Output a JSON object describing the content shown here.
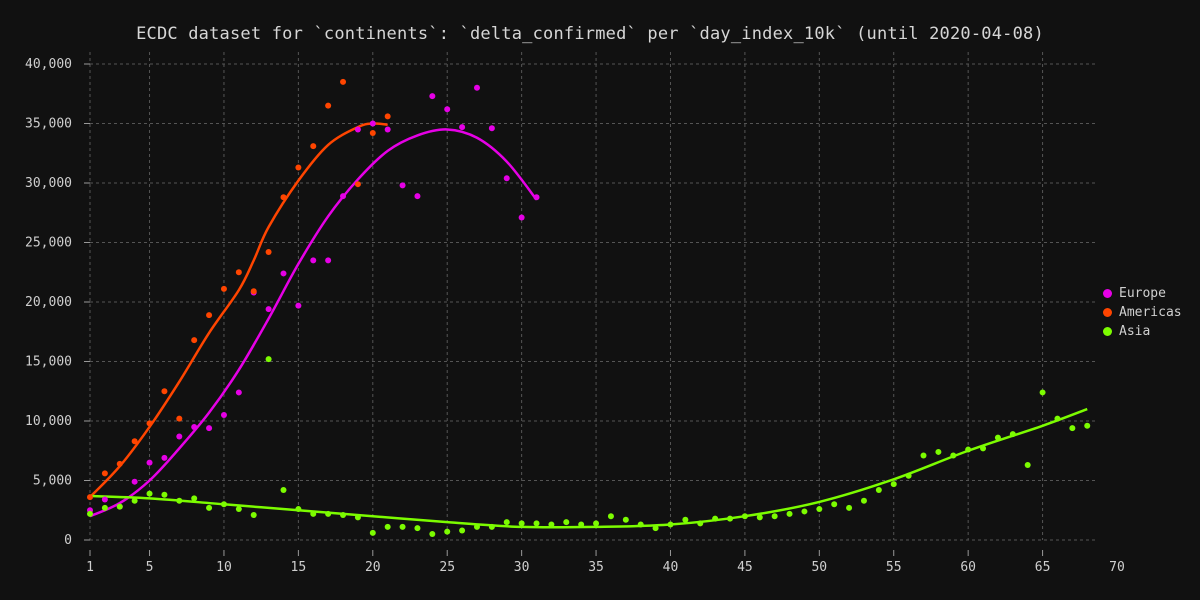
{
  "chart_data": {
    "type": "scatter",
    "title": "ECDC dataset for `continents`: `delta_confirmed` per `day_index_10k` (until 2020-04-08)",
    "xlabel": "",
    "ylabel": "",
    "xlim": [
      1,
      70
    ],
    "ylim": [
      0,
      40000
    ],
    "x_ticks": [
      1,
      5,
      10,
      15,
      20,
      25,
      30,
      35,
      40,
      45,
      50,
      55,
      60,
      65,
      70
    ],
    "y_ticks": [
      0,
      5000,
      10000,
      15000,
      20000,
      25000,
      30000,
      35000,
      40000
    ],
    "y_tick_labels": [
      "0",
      "5,000",
      "10,000",
      "15,000",
      "20,000",
      "25,000",
      "30,000",
      "35,000",
      "40,000"
    ],
    "grid": true,
    "legend_position": "right",
    "series": [
      {
        "name": "Europe",
        "color": "#e600e6",
        "points": [
          [
            1,
            2500
          ],
          [
            2,
            3400
          ],
          [
            3,
            2800
          ],
          [
            4,
            4900
          ],
          [
            5,
            6500
          ],
          [
            6,
            6900
          ],
          [
            7,
            8700
          ],
          [
            8,
            9500
          ],
          [
            9,
            9400
          ],
          [
            10,
            10500
          ],
          [
            11,
            12400
          ],
          [
            12,
            20800
          ],
          [
            13,
            19400
          ],
          [
            14,
            22400
          ],
          [
            15,
            19700
          ],
          [
            16,
            23500
          ],
          [
            17,
            23500
          ],
          [
            18,
            28900
          ],
          [
            19,
            34500
          ],
          [
            20,
            35000
          ],
          [
            21,
            34500
          ],
          [
            22,
            29800
          ],
          [
            23,
            28900
          ],
          [
            24,
            37300
          ],
          [
            25,
            36200
          ],
          [
            26,
            34700
          ],
          [
            27,
            38000
          ],
          [
            28,
            34600
          ],
          [
            29,
            30400
          ],
          [
            30,
            27100
          ],
          [
            31,
            28800
          ]
        ],
        "trend": [
          [
            1,
            2000
          ],
          [
            3,
            3100
          ],
          [
            5,
            5000
          ],
          [
            7,
            7700
          ],
          [
            9,
            10700
          ],
          [
            11,
            14300
          ],
          [
            13,
            18600
          ],
          [
            15,
            23200
          ],
          [
            17,
            27200
          ],
          [
            19,
            30300
          ],
          [
            21,
            32700
          ],
          [
            23,
            34000
          ],
          [
            25,
            34500
          ],
          [
            27,
            33800
          ],
          [
            29,
            31800
          ],
          [
            31,
            28600
          ]
        ]
      },
      {
        "name": "Americas",
        "color": "#ff4500",
        "points": [
          [
            1,
            3600
          ],
          [
            2,
            5600
          ],
          [
            3,
            6400
          ],
          [
            4,
            8300
          ],
          [
            5,
            9800
          ],
          [
            6,
            12500
          ],
          [
            7,
            10200
          ],
          [
            8,
            16800
          ],
          [
            9,
            18900
          ],
          [
            10,
            21100
          ],
          [
            11,
            22500
          ],
          [
            12,
            20900
          ],
          [
            13,
            24200
          ],
          [
            14,
            28800
          ],
          [
            15,
            31300
          ],
          [
            16,
            33100
          ],
          [
            17,
            36500
          ],
          [
            18,
            38500
          ],
          [
            19,
            29900
          ],
          [
            20,
            34200
          ],
          [
            21,
            35600
          ]
        ],
        "trend": [
          [
            1,
            3600
          ],
          [
            3,
            6200
          ],
          [
            5,
            9500
          ],
          [
            7,
            13300
          ],
          [
            9,
            17400
          ],
          [
            11,
            21000
          ],
          [
            12,
            23500
          ],
          [
            13,
            26300
          ],
          [
            15,
            30200
          ],
          [
            17,
            33200
          ],
          [
            19,
            34700
          ],
          [
            20,
            35000
          ],
          [
            21,
            34900
          ]
        ]
      },
      {
        "name": "Asia",
        "color": "#7cfc00",
        "points": [
          [
            1,
            2200
          ],
          [
            2,
            2700
          ],
          [
            3,
            2800
          ],
          [
            4,
            3300
          ],
          [
            5,
            3900
          ],
          [
            6,
            3800
          ],
          [
            7,
            3300
          ],
          [
            8,
            3500
          ],
          [
            9,
            2700
          ],
          [
            10,
            3000
          ],
          [
            11,
            2600
          ],
          [
            12,
            2100
          ],
          [
            13,
            15200
          ],
          [
            14,
            4200
          ],
          [
            15,
            2600
          ],
          [
            16,
            2200
          ],
          [
            17,
            2200
          ],
          [
            18,
            2100
          ],
          [
            19,
            1900
          ],
          [
            20,
            600
          ],
          [
            21,
            1100
          ],
          [
            22,
            1100
          ],
          [
            23,
            1000
          ],
          [
            24,
            500
          ],
          [
            25,
            700
          ],
          [
            26,
            800
          ],
          [
            27,
            1100
          ],
          [
            28,
            1100
          ],
          [
            29,
            1500
          ],
          [
            30,
            1400
          ],
          [
            31,
            1400
          ],
          [
            32,
            1300
          ],
          [
            33,
            1500
          ],
          [
            34,
            1300
          ],
          [
            35,
            1400
          ],
          [
            36,
            2000
          ],
          [
            37,
            1700
          ],
          [
            38,
            1300
          ],
          [
            39,
            1000
          ],
          [
            40,
            1300
          ],
          [
            41,
            1700
          ],
          [
            42,
            1400
          ],
          [
            43,
            1800
          ],
          [
            44,
            1800
          ],
          [
            45,
            2000
          ],
          [
            46,
            1900
          ],
          [
            47,
            2000
          ],
          [
            48,
            2200
          ],
          [
            49,
            2400
          ],
          [
            50,
            2600
          ],
          [
            51,
            3000
          ],
          [
            52,
            2700
          ],
          [
            53,
            3300
          ],
          [
            54,
            4200
          ],
          [
            55,
            4700
          ],
          [
            56,
            5400
          ],
          [
            57,
            7100
          ],
          [
            58,
            7400
          ],
          [
            59,
            7100
          ],
          [
            60,
            7600
          ],
          [
            61,
            7700
          ],
          [
            62,
            8600
          ],
          [
            63,
            8900
          ],
          [
            64,
            6300
          ],
          [
            65,
            12400
          ],
          [
            66,
            10200
          ],
          [
            67,
            9400
          ],
          [
            68,
            9600
          ]
        ],
        "trend": [
          [
            1,
            3700
          ],
          [
            5,
            3500
          ],
          [
            10,
            3000
          ],
          [
            15,
            2500
          ],
          [
            20,
            2000
          ],
          [
            25,
            1500
          ],
          [
            30,
            1100
          ],
          [
            35,
            1100
          ],
          [
            40,
            1300
          ],
          [
            45,
            2000
          ],
          [
            50,
            3200
          ],
          [
            55,
            5100
          ],
          [
            60,
            7500
          ],
          [
            65,
            9600
          ],
          [
            68,
            11000
          ]
        ]
      }
    ]
  }
}
